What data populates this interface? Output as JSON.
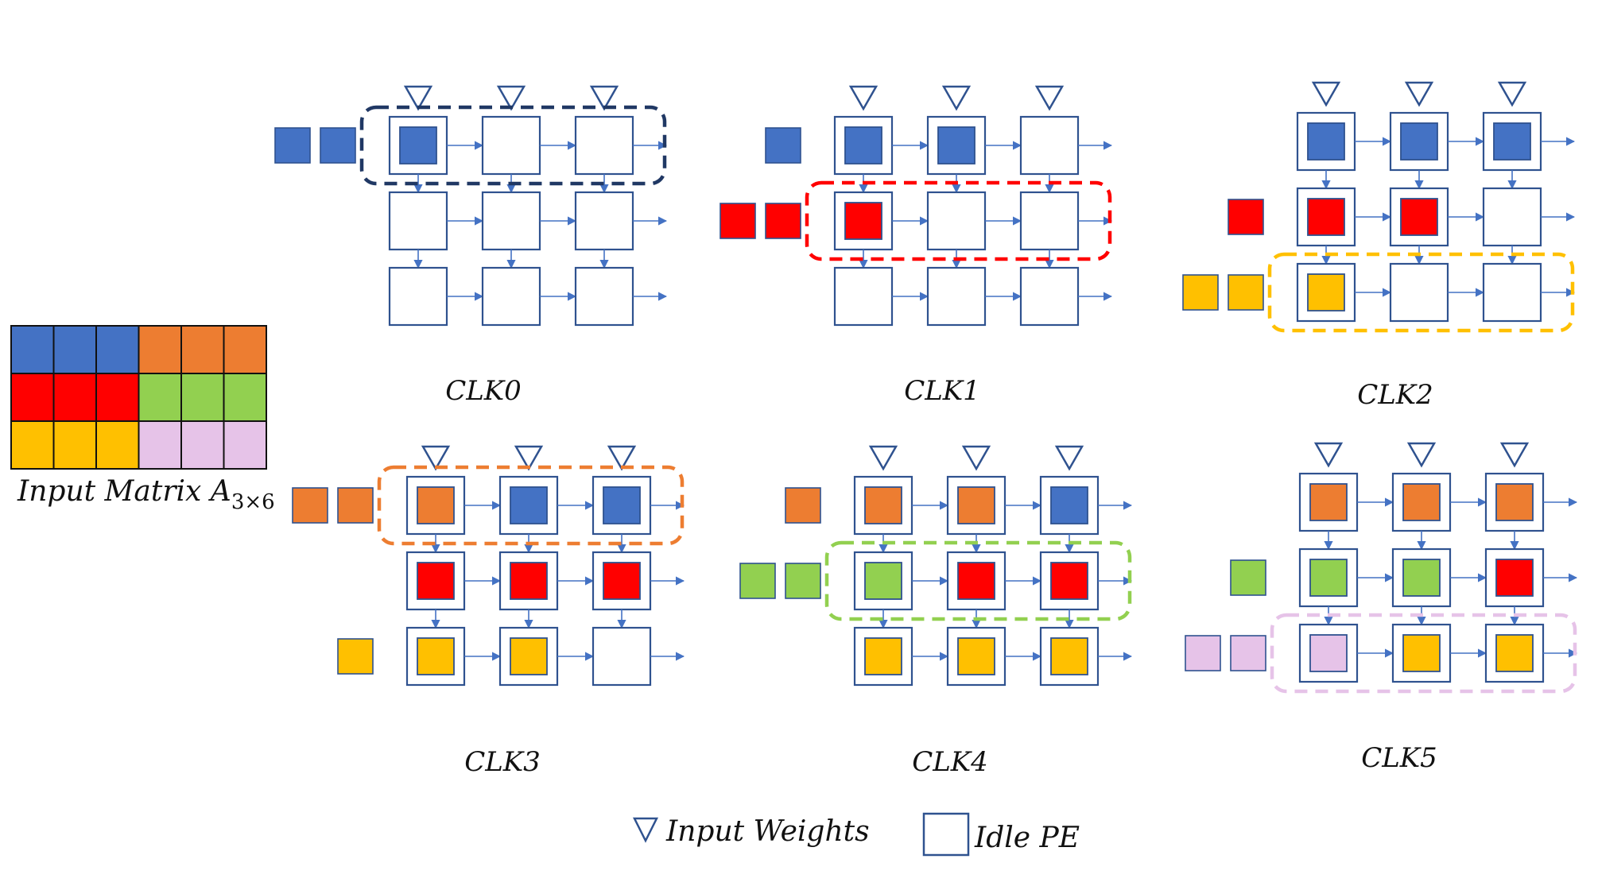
{
  "colors": {
    "blue": "#4472C4",
    "red": "#FF0000",
    "orange": "#ED7D31",
    "green": "#92D050",
    "yellow": "#FFC000",
    "pink": "#E6C3E8",
    "outline": "#2F528F",
    "arrow": "#4472C4",
    "highlight_blue": "#203864"
  },
  "matrix": {
    "label": "Input Matrix A",
    "subscript": "3×6",
    "rows": [
      [
        "blue",
        "blue",
        "blue",
        "orange",
        "orange",
        "orange"
      ],
      [
        "red",
        "red",
        "red",
        "green",
        "green",
        "green"
      ],
      [
        "yellow",
        "yellow",
        "yellow",
        "pink",
        "pink",
        "pink"
      ]
    ]
  },
  "legend": {
    "weights_label": "Input Weights",
    "idle_label": "Idle PE",
    "weights_icon": "down-triangle-icon",
    "idle_icon": "empty-square-icon"
  },
  "clocks": [
    {
      "label": "CLK0",
      "pe": [
        [
          "blue",
          null,
          null
        ],
        [
          null,
          null,
          null
        ],
        [
          null,
          null,
          null
        ]
      ],
      "queues": [
        [
          "blue",
          "blue"
        ],
        [],
        []
      ],
      "highlight": {
        "row": 0,
        "color": "highlight_blue"
      }
    },
    {
      "label": "CLK1",
      "pe": [
        [
          "blue",
          "blue",
          null
        ],
        [
          "red",
          null,
          null
        ],
        [
          null,
          null,
          null
        ]
      ],
      "queues": [
        [
          "blue"
        ],
        [
          "red",
          "red"
        ],
        []
      ],
      "highlight": {
        "row": 1,
        "color": "red"
      }
    },
    {
      "label": "CLK2",
      "pe": [
        [
          "blue",
          "blue",
          "blue"
        ],
        [
          "red",
          "red",
          null
        ],
        [
          "yellow",
          null,
          null
        ]
      ],
      "queues": [
        [],
        [
          "red"
        ],
        [
          "yellow",
          "yellow"
        ]
      ],
      "highlight": {
        "row": 2,
        "color": "yellow"
      }
    },
    {
      "label": "CLK3",
      "pe": [
        [
          "orange",
          "blue",
          "blue"
        ],
        [
          "red",
          "red",
          "red"
        ],
        [
          "yellow",
          "yellow",
          null
        ]
      ],
      "queues": [
        [
          "orange",
          "orange"
        ],
        [],
        [
          "yellow"
        ]
      ],
      "highlight": {
        "row": 0,
        "color": "orange"
      }
    },
    {
      "label": "CLK4",
      "pe": [
        [
          "orange",
          "orange",
          "blue"
        ],
        [
          "green",
          "red",
          "red"
        ],
        [
          "yellow",
          "yellow",
          "yellow"
        ]
      ],
      "queues": [
        [
          "orange"
        ],
        [
          "green",
          "green"
        ],
        []
      ],
      "highlight": {
        "row": 1,
        "color": "green"
      }
    },
    {
      "label": "CLK5",
      "pe": [
        [
          "orange",
          "orange",
          "orange"
        ],
        [
          "green",
          "green",
          "red"
        ],
        [
          "pink",
          "yellow",
          "yellow"
        ]
      ],
      "queues": [
        [],
        [
          "green"
        ],
        [
          "pink",
          "pink"
        ]
      ],
      "highlight": {
        "row": 2,
        "color": "pink"
      }
    }
  ]
}
